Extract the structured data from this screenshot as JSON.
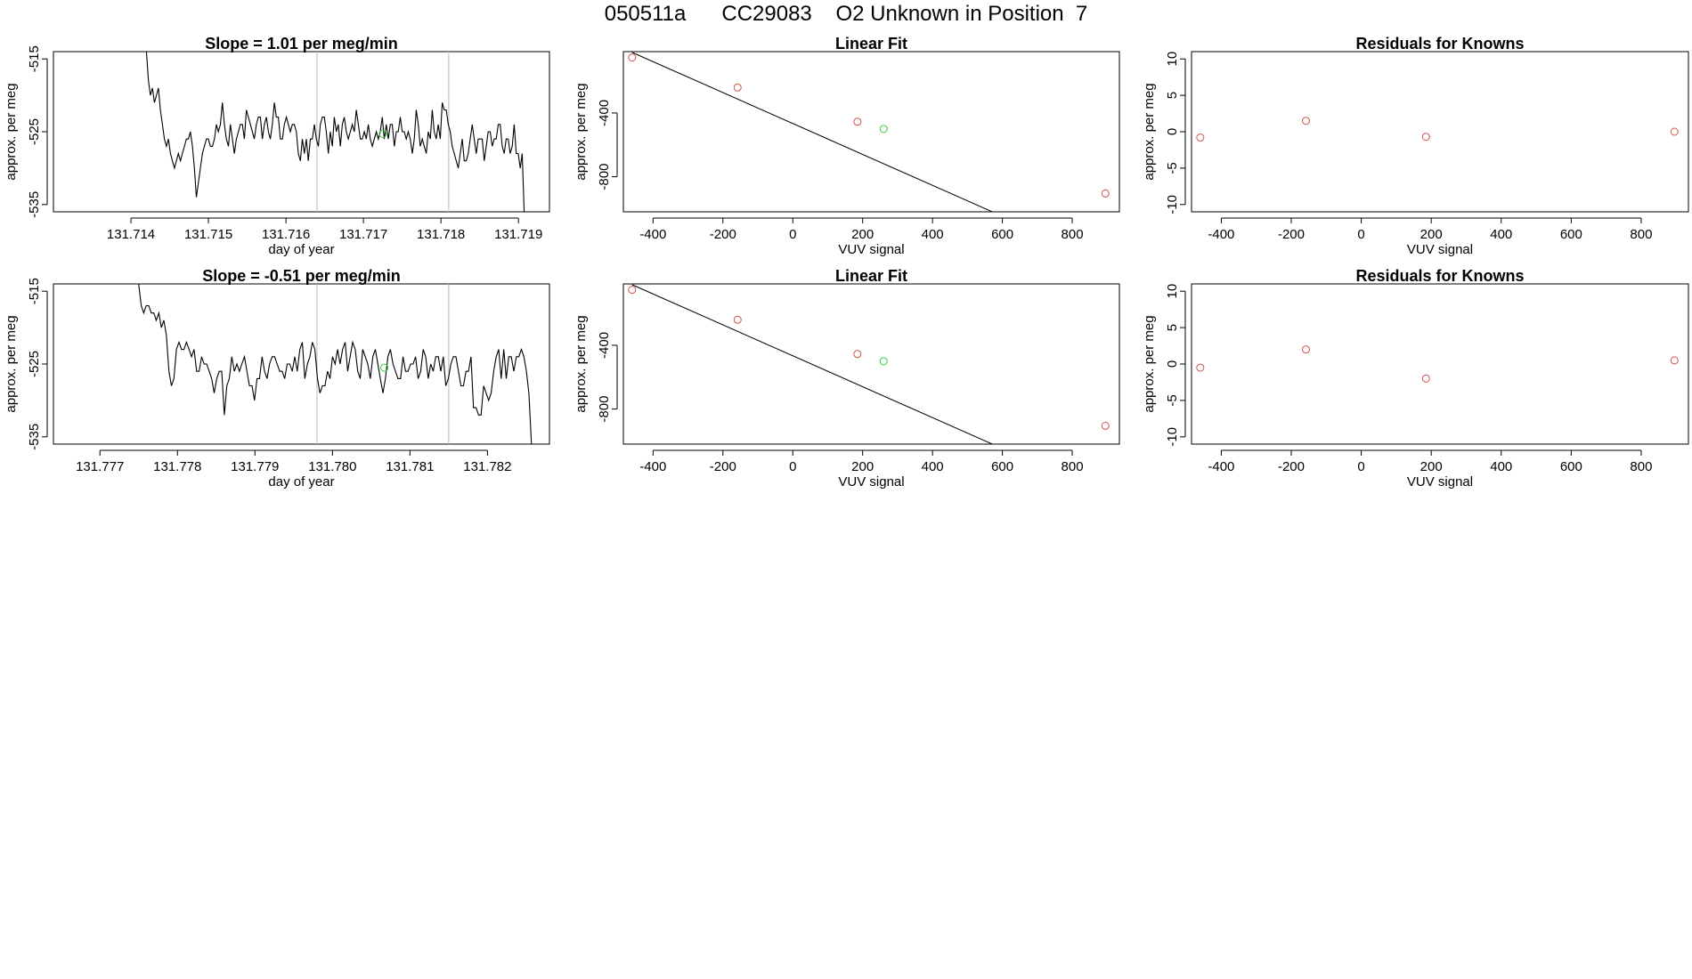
{
  "page": {
    "title": "050511a      CC29083    O2 Unknown in Position  7"
  },
  "colors": {
    "line": "#000000",
    "known_point": "#d0504a",
    "unknown_point": "#33cc33",
    "vline": "#bbbbbb"
  },
  "chart_data": [
    {
      "type": "line",
      "title": "Slope =  1.01  per meg/min",
      "xlabel": "day of year",
      "ylabel": "approx. per meg",
      "xlim": [
        131.713,
        131.7194
      ],
      "ylim": [
        -536,
        -514
      ],
      "xticks": [
        "131.714",
        "131.715",
        "131.716",
        "131.717",
        "131.718",
        "131.719"
      ],
      "xtick_values": [
        131.714,
        131.715,
        131.716,
        131.717,
        131.718,
        131.719
      ],
      "yticks": [
        "-515",
        "-525",
        "-535"
      ],
      "ytick_values": [
        -515,
        -525,
        -535
      ],
      "vlines": [
        131.7164,
        131.7181
      ],
      "series": [
        {
          "x_start": 131.7142,
          "x_end": 131.7191,
          "values": [
            -514,
            -518,
            -520,
            -519,
            -521,
            -520,
            -519,
            -522,
            -524,
            -526,
            -527,
            -526,
            -528,
            -529,
            -530,
            -529,
            -528,
            -529,
            -528,
            -527,
            -526,
            -526,
            -525,
            -527,
            -530,
            -534,
            -532,
            -530,
            -528,
            -527,
            -526,
            -526,
            -527,
            -527,
            -526,
            -524,
            -525,
            -524,
            -521,
            -524,
            -526,
            -527,
            -524,
            -526,
            -528,
            -526,
            -525,
            -524,
            -524,
            -526,
            -522,
            -523,
            -524,
            -525,
            -526,
            -524,
            -523,
            -523,
            -526,
            -524,
            -523,
            -525,
            -526,
            -524,
            -521,
            -523,
            -523,
            -526,
            -526,
            -524,
            -523,
            -524,
            -525,
            -524,
            -524,
            -525,
            -528,
            -529,
            -526,
            -528,
            -526,
            -529,
            -526,
            -526,
            -524,
            -526,
            -527,
            -524,
            -523,
            -523,
            -525,
            -528,
            -525,
            -527,
            -523,
            -525,
            -524,
            -527,
            -524,
            -523,
            -525,
            -526,
            -525,
            -524,
            -525,
            -522,
            -524,
            -526,
            -526,
            -525,
            -526,
            -524,
            -526,
            -527,
            -526,
            -525,
            -526,
            -525,
            -523,
            -526,
            -524,
            -526,
            -524,
            -524,
            -527,
            -525,
            -525,
            -523,
            -525,
            -525,
            -526,
            -525,
            -526,
            -528,
            -526,
            -522,
            -524,
            -527,
            -526,
            -527,
            -528,
            -525,
            -526,
            -522,
            -525,
            -526,
            -524,
            -526,
            -521,
            -522,
            -522,
            -524,
            -525,
            -527,
            -528,
            -529,
            -530,
            -528,
            -526,
            -529,
            -529,
            -528,
            -526,
            -524,
            -526,
            -528,
            -526,
            -526,
            -526,
            -529,
            -527,
            -525,
            -525,
            -527,
            -526,
            -526,
            -524,
            -524,
            -527,
            -528,
            -526,
            -526,
            -528,
            -527,
            -524,
            -528,
            -528,
            -530,
            -528,
            -536,
            -537
          ]
        }
      ],
      "highlight": {
        "x": 131.71725,
        "y": -525.3
      }
    },
    {
      "type": "scatter",
      "title": "Linear Fit",
      "xlabel": "VUV signal",
      "ylabel": "approx. per meg",
      "xlim": [
        -485,
        935
      ],
      "ylim": [
        -1020,
        -15
      ],
      "xticks": [
        "-400",
        "-200",
        "0",
        "200",
        "400",
        "600",
        "800"
      ],
      "xtick_values": [
        -400,
        -200,
        0,
        200,
        400,
        600,
        800
      ],
      "yticks": [
        "-400",
        "-800"
      ],
      "ytick_values": [
        -400,
        -800
      ],
      "fit_line": {
        "slope": -0.97,
        "intercept": -466
      },
      "known_points": [
        {
          "x": -460,
          "y": -52
        },
        {
          "x": -158,
          "y": -240
        },
        {
          "x": 185,
          "y": -455
        },
        {
          "x": 895,
          "y": -905
        }
      ],
      "unknown_point": {
        "x": 260,
        "y": -500
      }
    },
    {
      "type": "scatter",
      "title": "Residuals for Knowns",
      "xlabel": "VUV signal",
      "ylabel": "approx. per meg",
      "xlim": [
        -485,
        935
      ],
      "ylim": [
        -11,
        11
      ],
      "xticks": [
        "-400",
        "-200",
        "0",
        "200",
        "400",
        "600",
        "800"
      ],
      "xtick_values": [
        -400,
        -200,
        0,
        200,
        400,
        600,
        800
      ],
      "yticks": [
        "10",
        "5",
        "0",
        "-5",
        "-10"
      ],
      "ytick_values": [
        10,
        5,
        0,
        -5,
        -10
      ],
      "known_points": [
        {
          "x": -460,
          "y": -0.8
        },
        {
          "x": -158,
          "y": 1.5
        },
        {
          "x": 185,
          "y": -0.7
        },
        {
          "x": 895,
          "y": 0.0
        }
      ]
    },
    {
      "type": "line",
      "title": "Slope =  -0.51  per meg/min",
      "xlabel": "day of year",
      "ylabel": "approx. per meg",
      "xlim": [
        131.7764,
        131.7828
      ],
      "ylim": [
        -536,
        -514
      ],
      "xticks": [
        "131.777",
        "131.778",
        "131.779",
        "131.780",
        "131.781",
        "131.782"
      ],
      "xtick_values": [
        131.777,
        131.778,
        131.779,
        131.78,
        131.781,
        131.782
      ],
      "yticks": [
        "-515",
        "-525",
        "-535"
      ],
      "ytick_values": [
        -515,
        -525,
        -535
      ],
      "vlines": [
        131.7798,
        131.7815
      ],
      "series": [
        {
          "x_start": 131.7775,
          "x_end": 131.7826,
          "values": [
            -514,
            -517,
            -518,
            -517,
            -517,
            -518,
            -518,
            -519,
            -518,
            -520,
            -519,
            -521,
            -526,
            -528,
            -527,
            -523,
            -522,
            -523,
            -523,
            -522,
            -523,
            -524,
            -523,
            -526,
            -526,
            -524,
            -525,
            -525,
            -526,
            -527,
            -529,
            -527,
            -526,
            -526,
            -532,
            -528,
            -527,
            -524,
            -526,
            -525,
            -526,
            -525,
            -524,
            -526,
            -528,
            -528,
            -530,
            -527,
            -527,
            -524,
            -526,
            -527,
            -525,
            -524,
            -524,
            -525,
            -526,
            -526,
            -527,
            -525,
            -525,
            -526,
            -524,
            -526,
            -523,
            -522,
            -527,
            -525,
            -524,
            -522,
            -523,
            -527,
            -529,
            -528,
            -528,
            -526,
            -527,
            -524,
            -525,
            -523,
            -525,
            -523,
            -522,
            -526,
            -524,
            -522,
            -523,
            -526,
            -527,
            -523,
            -524,
            -525,
            -527,
            -524,
            -523,
            -525,
            -527,
            -529,
            -527,
            -524,
            -523,
            -525,
            -526,
            -527,
            -527,
            -524,
            -526,
            -526,
            -525,
            -525,
            -524,
            -527,
            -526,
            -523,
            -524,
            -527,
            -525,
            -526,
            -524,
            -524,
            -526,
            -524,
            -528,
            -527,
            -525,
            -524,
            -524,
            -526,
            -528,
            -528,
            -526,
            -526,
            -524,
            -531,
            -531,
            -532,
            -532,
            -528,
            -529,
            -530,
            -529,
            -526,
            -524,
            -523,
            -527,
            -523,
            -527,
            -524,
            -524,
            -526,
            -524,
            -524,
            -523,
            -524,
            -526,
            -529,
            -536,
            -538
          ]
        }
      ],
      "highlight": {
        "x": 131.78067,
        "y": -525.5
      }
    },
    {
      "type": "scatter",
      "title": "Linear Fit",
      "xlabel": "VUV signal",
      "ylabel": "approx. per meg",
      "xlim": [
        -485,
        935
      ],
      "ylim": [
        -1020,
        -15
      ],
      "xticks": [
        "-400",
        "-200",
        "0",
        "200",
        "400",
        "600",
        "800"
      ],
      "xtick_values": [
        -400,
        -200,
        0,
        200,
        400,
        600,
        800
      ],
      "yticks": [
        "-400",
        "-800"
      ],
      "ytick_values": [
        -400,
        -800
      ],
      "fit_line": {
        "slope": -0.97,
        "intercept": -466
      },
      "known_points": [
        {
          "x": -460,
          "y": -52
        },
        {
          "x": -158,
          "y": -240
        },
        {
          "x": 185,
          "y": -455
        },
        {
          "x": 895,
          "y": -905
        }
      ],
      "unknown_point": {
        "x": 260,
        "y": -500
      }
    },
    {
      "type": "scatter",
      "title": "Residuals for Knowns",
      "xlabel": "VUV signal",
      "ylabel": "approx. per meg",
      "xlim": [
        -485,
        935
      ],
      "ylim": [
        -11,
        11
      ],
      "xticks": [
        "-400",
        "-200",
        "0",
        "200",
        "400",
        "600",
        "800"
      ],
      "xtick_values": [
        -400,
        -200,
        0,
        200,
        400,
        600,
        800
      ],
      "yticks": [
        "10",
        "5",
        "0",
        "-5",
        "-10"
      ],
      "ytick_values": [
        10,
        5,
        0,
        -5,
        -10
      ],
      "known_points": [
        {
          "x": -460,
          "y": -0.5
        },
        {
          "x": -158,
          "y": 2.0
        },
        {
          "x": 185,
          "y": -2.0
        },
        {
          "x": 895,
          "y": 0.5
        }
      ]
    }
  ]
}
